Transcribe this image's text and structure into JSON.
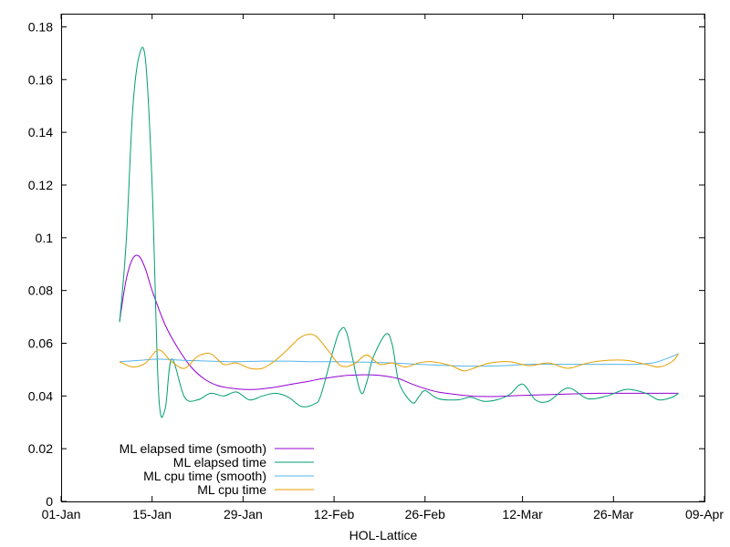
{
  "chart_data": {
    "type": "line",
    "title": "",
    "xlabel": "HOL-Lattice",
    "ylabel": "",
    "x_ticks": [
      "01-Jan",
      "15-Jan",
      "29-Jan",
      "12-Feb",
      "26-Feb",
      "12-Mar",
      "26-Mar",
      "09-Apr"
    ],
    "y_ticks": [
      "0",
      "0.02",
      "0.04",
      "0.06",
      "0.08",
      "0.1",
      "0.12",
      "0.14",
      "0.16",
      "0.18"
    ],
    "ylim": [
      0,
      0.185
    ],
    "xlim": [
      "01-Jan",
      "09-Apr"
    ],
    "grid": false,
    "legend_position": "bottom-left",
    "series": [
      {
        "name": "ML elapsed time (smooth)",
        "color": "#9400d3",
        "x": [
          "10-Jan",
          "11-Jan",
          "12-Jan",
          "13-Jan",
          "14-Jan",
          "15-Jan",
          "17-Jan",
          "19-Jan",
          "21-Jan",
          "23-Jan",
          "25-Jan",
          "27-Jan",
          "29-Jan",
          "31-Jan",
          "02-Feb",
          "04-Feb",
          "06-Feb",
          "08-Feb",
          "10-Feb",
          "12-Feb",
          "14-Feb",
          "16-Feb",
          "18-Feb",
          "20-Feb",
          "22-Feb",
          "24-Feb",
          "26-Feb",
          "28-Feb",
          "02-Mar",
          "04-Mar",
          "06-Mar",
          "08-Mar",
          "10-Mar",
          "12-Mar",
          "16-Mar",
          "20-Mar",
          "24-Mar",
          "28-Mar",
          "01-Apr",
          "05-Apr"
        ],
        "y": [
          0.0685,
          0.084,
          0.092,
          0.093,
          0.088,
          0.08,
          0.067,
          0.058,
          0.051,
          0.0465,
          0.044,
          0.043,
          0.0425,
          0.0425,
          0.043,
          0.0438,
          0.0447,
          0.0455,
          0.0465,
          0.0472,
          0.0478,
          0.048,
          0.048,
          0.0475,
          0.0465,
          0.0445,
          0.0428,
          0.0415,
          0.0405,
          0.04,
          0.0398,
          0.0398,
          0.04,
          0.0402,
          0.0405,
          0.0408,
          0.041,
          0.041,
          0.041,
          0.041
        ]
      },
      {
        "name": "ML elapsed time",
        "color": "#009e73",
        "x": [
          "10-Jan",
          "11-Jan",
          "12-Jan",
          "13-Jan",
          "14-Jan",
          "15-Jan",
          "16-Jan",
          "17-Jan",
          "18-Jan",
          "20-Jan",
          "22-Jan",
          "24-Jan",
          "26-Jan",
          "28-Jan",
          "30-Jan",
          "01-Feb",
          "03-Feb",
          "05-Feb",
          "07-Feb",
          "09-Feb",
          "10-Feb",
          "12-Feb",
          "13-Feb",
          "14-Feb",
          "16-Feb",
          "17-Feb",
          "18-Feb",
          "20-Feb",
          "21-Feb",
          "22-Feb",
          "24-Feb",
          "25-Feb",
          "26-Feb",
          "28-Feb",
          "02-Mar",
          "04-Mar",
          "06-Mar",
          "08-Mar",
          "10-Mar",
          "12-Mar",
          "14-Mar",
          "16-Mar",
          "19-Mar",
          "22-Mar",
          "25-Mar",
          "28-Mar",
          "31-Mar",
          "02-Apr",
          "04-Apr",
          "05-Apr"
        ],
        "y": [
          0.068,
          0.098,
          0.148,
          0.169,
          0.167,
          0.12,
          0.041,
          0.035,
          0.054,
          0.0395,
          0.0385,
          0.041,
          0.04,
          0.0415,
          0.0385,
          0.04,
          0.041,
          0.0395,
          0.036,
          0.037,
          0.0405,
          0.0585,
          0.065,
          0.0635,
          0.042,
          0.045,
          0.0545,
          0.0635,
          0.059,
          0.045,
          0.0375,
          0.0395,
          0.042,
          0.039,
          0.0385,
          0.0395,
          0.038,
          0.0385,
          0.0405,
          0.0445,
          0.0385,
          0.038,
          0.043,
          0.039,
          0.04,
          0.0425,
          0.041,
          0.0385,
          0.0395,
          0.041
        ]
      },
      {
        "name": "ML cpu time (smooth)",
        "color": "#56b4e9",
        "x": [
          "10-Jan",
          "13-Jan",
          "16-Jan",
          "20-Jan",
          "24-Jan",
          "28-Jan",
          "01-Feb",
          "05-Feb",
          "09-Feb",
          "13-Feb",
          "17-Feb",
          "21-Feb",
          "25-Feb",
          "01-Mar",
          "05-Mar",
          "09-Mar",
          "13-Mar",
          "17-Mar",
          "21-Mar",
          "25-Mar",
          "29-Mar",
          "01-Apr",
          "03-Apr",
          "05-Apr"
        ],
        "y": [
          0.053,
          0.0535,
          0.054,
          0.0535,
          0.0532,
          0.053,
          0.0532,
          0.0532,
          0.053,
          0.053,
          0.0528,
          0.0525,
          0.052,
          0.0515,
          0.0513,
          0.0515,
          0.052,
          0.052,
          0.052,
          0.052,
          0.052,
          0.0525,
          0.054,
          0.056
        ]
      },
      {
        "name": "ML cpu time",
        "color": "#e69f00",
        "x": [
          "10-Jan",
          "12-Jan",
          "14-Jan",
          "16-Jan",
          "18-Jan",
          "20-Jan",
          "22-Jan",
          "24-Jan",
          "26-Jan",
          "28-Jan",
          "30-Jan",
          "01-Feb",
          "03-Feb",
          "05-Feb",
          "07-Feb",
          "09-Feb",
          "11-Feb",
          "13-Feb",
          "15-Feb",
          "17-Feb",
          "19-Feb",
          "21-Feb",
          "23-Feb",
          "25-Feb",
          "27-Feb",
          "01-Mar",
          "03-Mar",
          "05-Mar",
          "07-Mar",
          "10-Mar",
          "13-Mar",
          "16-Mar",
          "19-Mar",
          "22-Mar",
          "25-Mar",
          "28-Mar",
          "31-Mar",
          "02-Apr",
          "04-Apr",
          "05-Apr"
        ],
        "y": [
          0.053,
          0.051,
          0.0525,
          0.0575,
          0.053,
          0.0505,
          0.055,
          0.056,
          0.052,
          0.0525,
          0.0505,
          0.0505,
          0.0535,
          0.058,
          0.0625,
          0.063,
          0.0575,
          0.0515,
          0.052,
          0.0555,
          0.052,
          0.0525,
          0.051,
          0.0525,
          0.053,
          0.0515,
          0.0495,
          0.051,
          0.0525,
          0.053,
          0.0515,
          0.0525,
          0.0505,
          0.0525,
          0.0535,
          0.0535,
          0.052,
          0.051,
          0.053,
          0.056
        ]
      }
    ]
  }
}
